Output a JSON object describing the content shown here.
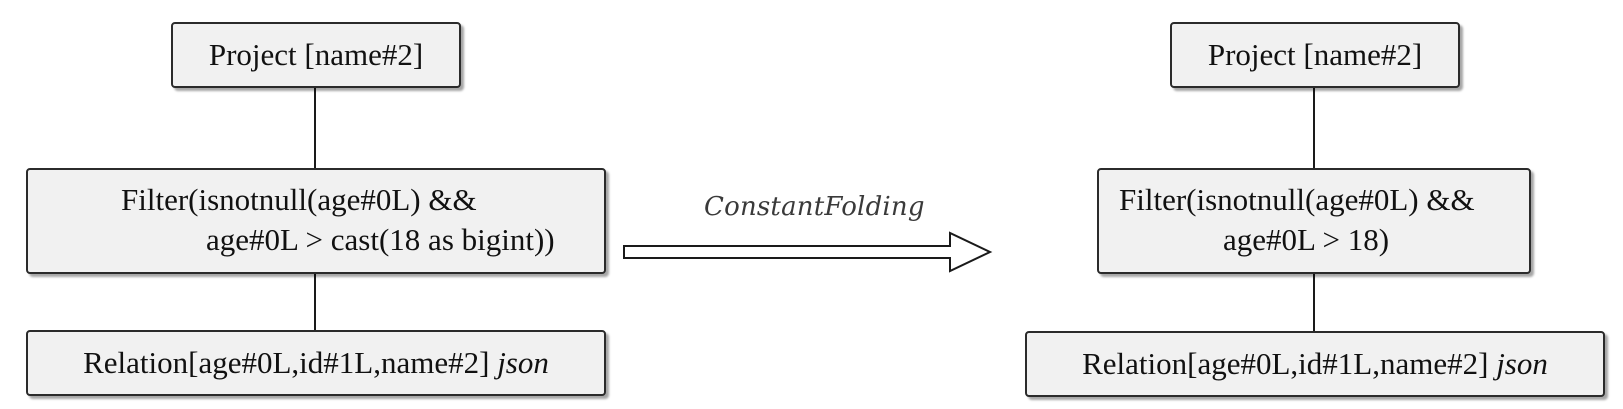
{
  "rule_label": "ConstantFolding",
  "left_tree": {
    "project": "Project [name#2]",
    "filter_line1": "Filter(isnotnull(age#0L) &&",
    "filter_line2": "age#0L > cast(18 as bigint))",
    "relation_main": "Relation[age#0L,id#1L,name#2]",
    "relation_format": "json"
  },
  "right_tree": {
    "project": "Project [name#2]",
    "filter_line1": "Filter(isnotnull(age#0L) &&",
    "filter_line2": "age#0L > 18)",
    "relation_main": "Relation[age#0L,id#1L,name#2]",
    "relation_format": "json"
  }
}
